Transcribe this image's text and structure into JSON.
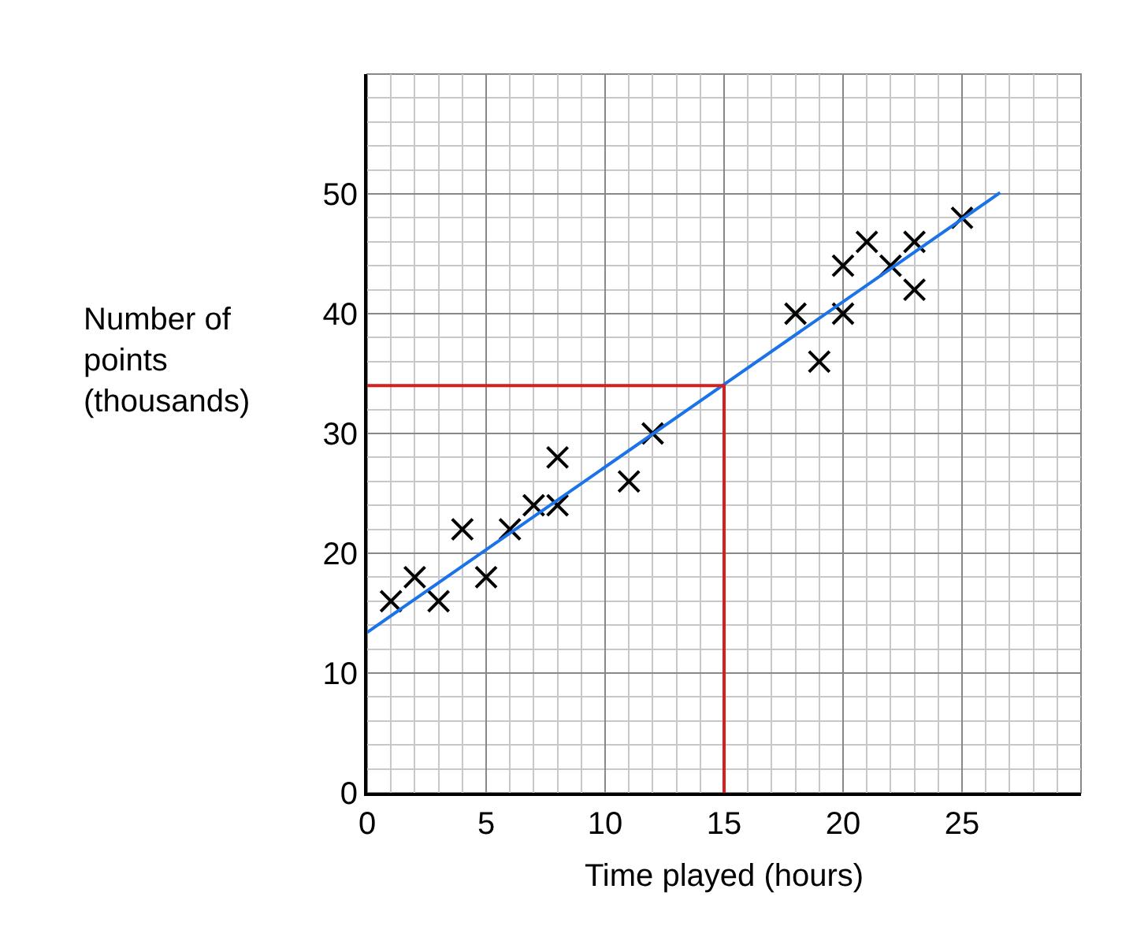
{
  "chart_data": {
    "type": "scatter",
    "xlabel": "Time played (hours)",
    "ylabel": "Number of\npoints\n(thousands)",
    "xlim": [
      0,
      30
    ],
    "ylim": [
      0,
      60
    ],
    "xticks": [
      0,
      5,
      10,
      15,
      20,
      25
    ],
    "yticks": [
      0,
      10,
      20,
      30,
      40,
      50
    ],
    "grid": true,
    "series": [
      {
        "marker": "cross",
        "color": "#000000",
        "x": [
          1,
          2,
          3,
          4,
          5,
          6,
          7,
          8,
          8,
          11,
          12,
          18,
          19,
          20,
          20,
          21,
          22,
          23,
          23,
          25
        ],
        "values": [
          16,
          18,
          16,
          22,
          18,
          22,
          24,
          24,
          28,
          26,
          30,
          40,
          36,
          40,
          44,
          46,
          44,
          46,
          42,
          48
        ]
      },
      {
        "type": "line",
        "color": "#1a73e8",
        "x": [
          0,
          26.6
        ],
        "values": [
          13.4,
          50.1
        ]
      },
      {
        "type": "line",
        "color": "#d62020",
        "x": [
          0,
          15,
          15
        ],
        "values": [
          34,
          34,
          0
        ]
      }
    ]
  }
}
